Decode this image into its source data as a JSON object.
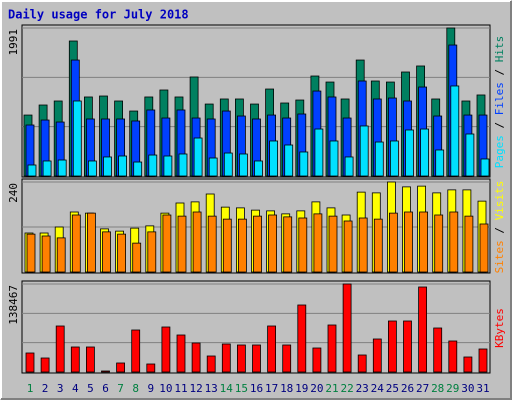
{
  "chart_data": [
    {
      "type": "bar",
      "title": "Daily usage for July 2018",
      "categories": [
        "1",
        "2",
        "3",
        "4",
        "5",
        "6",
        "7",
        "8",
        "9",
        "10",
        "11",
        "12",
        "13",
        "14",
        "15",
        "16",
        "17",
        "18",
        "19",
        "20",
        "21",
        "22",
        "23",
        "24",
        "25",
        "26",
        "27",
        "28",
        "29",
        "30",
        "31"
      ],
      "category_colors": [
        "#008040",
        "#000080",
        "#000080",
        "#000080",
        "#000080",
        "#000080",
        "#008040",
        "#008040",
        "#000080",
        "#000080",
        "#000080",
        "#000080",
        "#000080",
        "#008040",
        "#008040",
        "#000080",
        "#000080",
        "#000080",
        "#000080",
        "#000080",
        "#008040",
        "#008040",
        "#000080",
        "#000080",
        "#000080",
        "#000080",
        "#000080",
        "#008040",
        "#008040",
        "#000080",
        "#000080"
      ],
      "legend_separator": " / ",
      "ylim": [
        0,
        1991
      ],
      "yticks": [
        1991
      ],
      "series": [
        {
          "name": "Pages",
          "color": "#00e0ff",
          "values": [
            148,
            202,
            215,
            1009,
            202,
            256,
            269,
            188,
            282,
            269,
            296,
            511,
            242,
            309,
            296,
            202,
            471,
            417,
            323,
            632,
            471,
            256,
            673,
            457,
            471,
            619,
            632,
            350,
            1211,
            565,
            229
          ]
        },
        {
          "name": "Files",
          "color": "#0040ff",
          "values": [
            686,
            753,
            726,
            1560,
            767,
            767,
            767,
            740,
            888,
            780,
            888,
            780,
            767,
            874,
            807,
            767,
            820,
            780,
            834,
            1143,
            1063,
            780,
            1278,
            1036,
            1049,
            1009,
            1197,
            807,
            1762,
            820,
            820
          ]
        },
        {
          "name": "Hits",
          "color": "#008060",
          "values": [
            820,
            955,
            1009,
            1816,
            1063,
            1076,
            1009,
            874,
            1063,
            1157,
            1063,
            1332,
            968,
            1036,
            1036,
            968,
            1170,
            982,
            1022,
            1345,
            1264,
            1036,
            1560,
            1278,
            1264,
            1399,
            1480,
            1036,
            1991,
            1009,
            1090
          ]
        }
      ]
    },
    {
      "type": "bar",
      "legend_separator": " / ",
      "ylim": [
        0,
        240
      ],
      "yticks": [
        240
      ],
      "series": [
        {
          "name": "Sites",
          "color": "#ff8000",
          "values": [
            101,
            96,
            91,
            152,
            157,
            107,
            101,
            77,
            107,
            152,
            149,
            160,
            149,
            141,
            141,
            149,
            152,
            147,
            144,
            155,
            149,
            136,
            144,
            141,
            157,
            160,
            160,
            152,
            160,
            149,
            128
          ]
        },
        {
          "name": "Visits",
          "color": "#ffff00",
          "values": [
            104,
            104,
            120,
            160,
            157,
            115,
            109,
            117,
            123,
            157,
            184,
            187,
            208,
            173,
            171,
            165,
            163,
            155,
            163,
            187,
            171,
            152,
            213,
            211,
            240,
            227,
            229,
            211,
            219,
            219,
            189
          ]
        }
      ]
    },
    {
      "type": "bar",
      "ylim": [
        0,
        138467
      ],
      "yticks": [
        138467
      ],
      "series": [
        {
          "name": "KBytes",
          "color": "#ff0000",
          "values": [
            29897,
            22029,
            72381,
            39338,
            39338,
            1574,
            14162,
            66087,
            12588,
            70808,
            58220,
            45632,
            25176,
            44058,
            42485,
            42485,
            72381,
            42485,
            105425,
            37764,
            73955,
            138467,
            26750,
            51926,
            80249,
            80249,
            133748,
            69234,
            48779,
            23603,
            36191
          ]
        }
      ]
    }
  ]
}
